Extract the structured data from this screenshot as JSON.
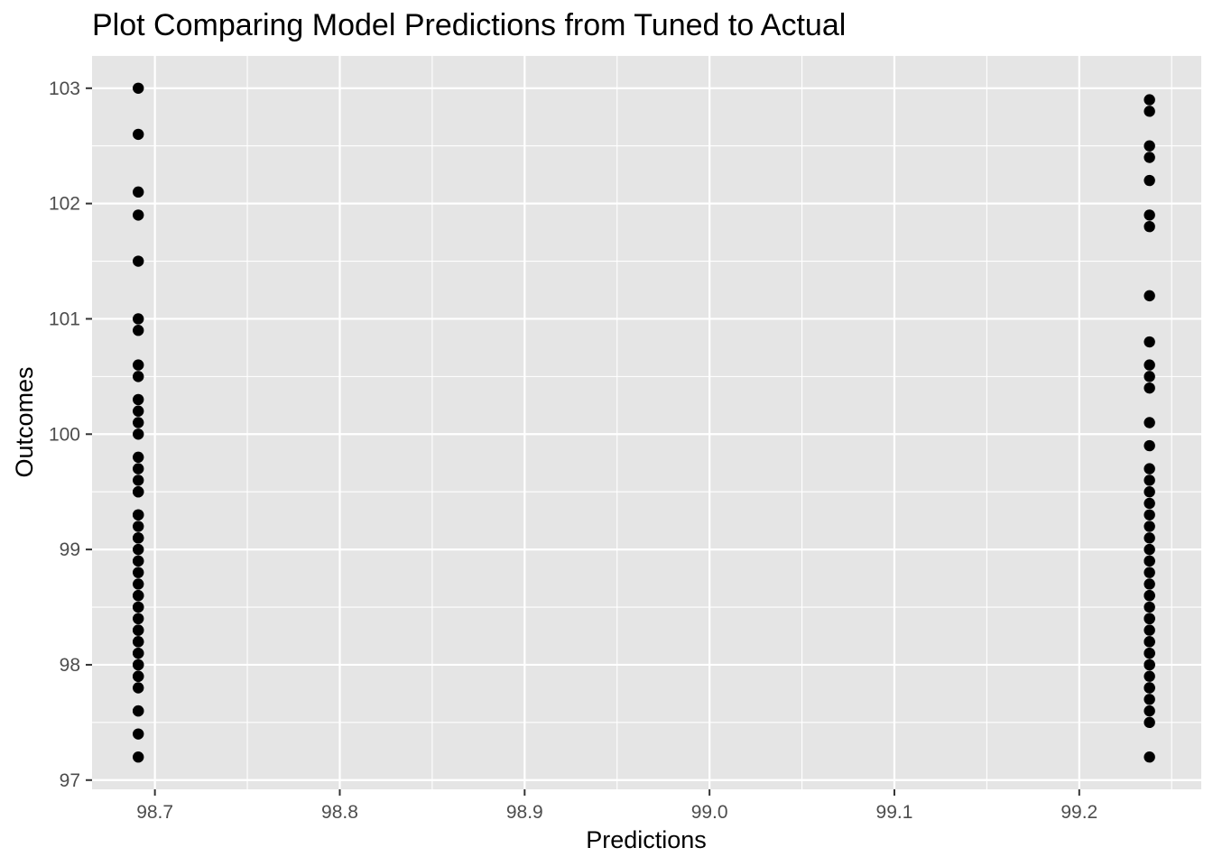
{
  "chart_data": {
    "type": "scatter",
    "title": "Plot Comparing Model Predictions from Tuned to Actual",
    "xlabel": "Predictions",
    "ylabel": "Outcomes",
    "xlim": [
      98.666,
      99.266
    ],
    "ylim": [
      96.92,
      103.28
    ],
    "x_ticks": [
      98.7,
      98.8,
      98.9,
      99.0,
      99.1,
      99.2
    ],
    "x_tick_labels": [
      "98.7",
      "98.8",
      "98.9",
      "99.0",
      "99.1",
      "99.2"
    ],
    "y_ticks": [
      97,
      98,
      99,
      100,
      101,
      102,
      103
    ],
    "y_tick_labels": [
      "97",
      "98",
      "99",
      "100",
      "101",
      "102",
      "103"
    ],
    "grid": true,
    "legend": "none",
    "colors": {
      "panel_background": "#e5e5e5",
      "grid_line": "#ffffff",
      "point": "#000000",
      "tick_label": "#4d4d4d",
      "tick_mark": "#333333"
    },
    "series": [
      {
        "x": [
          98.691,
          98.691,
          98.691,
          98.691,
          98.691,
          98.691,
          98.691,
          98.691,
          98.691,
          98.691,
          98.691,
          98.691,
          98.691,
          98.691,
          98.691,
          98.691,
          98.691,
          98.691,
          98.691,
          98.691,
          98.691,
          98.691,
          98.691,
          98.691,
          98.691,
          98.691,
          98.691,
          98.691,
          98.691,
          98.691,
          98.691,
          98.691,
          98.691,
          98.691,
          98.691,
          98.691,
          98.691,
          98.691,
          98.691,
          98.691,
          98.691,
          98.691,
          98.691,
          98.691,
          98.691,
          98.691,
          98.691,
          98.691,
          99.238,
          99.238,
          99.238,
          99.238,
          99.238,
          99.238,
          99.238,
          99.238,
          99.238,
          99.238,
          99.238,
          99.238,
          99.238,
          99.238,
          99.238,
          99.238,
          99.238,
          99.238,
          99.238,
          99.238,
          99.238,
          99.238,
          99.238,
          99.238,
          99.238,
          99.238,
          99.238,
          99.238,
          99.238,
          99.238,
          99.238,
          99.238,
          99.238,
          99.238,
          99.238,
          99.238,
          99.238,
          99.238,
          99.238,
          99.238,
          99.238,
          99.238,
          99.238,
          99.238,
          99.238
        ],
        "y": [
          103.0,
          102.6,
          102.1,
          101.9,
          101.5,
          101.0,
          100.9,
          100.6,
          100.5,
          100.3,
          100.2,
          100.1,
          100.0,
          99.8,
          99.7,
          99.6,
          99.5,
          99.3,
          99.2,
          99.1,
          99.0,
          98.9,
          98.8,
          98.7,
          98.6,
          98.5,
          98.4,
          98.3,
          98.2,
          98.1,
          98.0,
          97.9,
          97.8,
          97.6,
          97.4,
          97.2,
          99.5,
          99.3,
          99.1,
          98.9,
          98.6,
          98.5,
          98.3,
          98.2,
          98.1,
          98.0,
          97.9,
          97.6,
          102.9,
          102.8,
          102.5,
          102.4,
          102.2,
          101.9,
          101.8,
          101.2,
          100.8,
          100.6,
          100.5,
          100.4,
          100.1,
          99.9,
          99.7,
          99.6,
          99.5,
          99.4,
          99.3,
          99.2,
          99.1,
          99.0,
          98.9,
          98.8,
          98.7,
          98.6,
          98.5,
          98.4,
          98.3,
          98.2,
          98.1,
          98.0,
          97.9,
          97.8,
          97.7,
          97.6,
          97.5,
          97.2,
          98.9,
          98.6,
          98.4,
          98.2,
          98.1,
          97.8,
          98.0
        ]
      }
    ]
  }
}
